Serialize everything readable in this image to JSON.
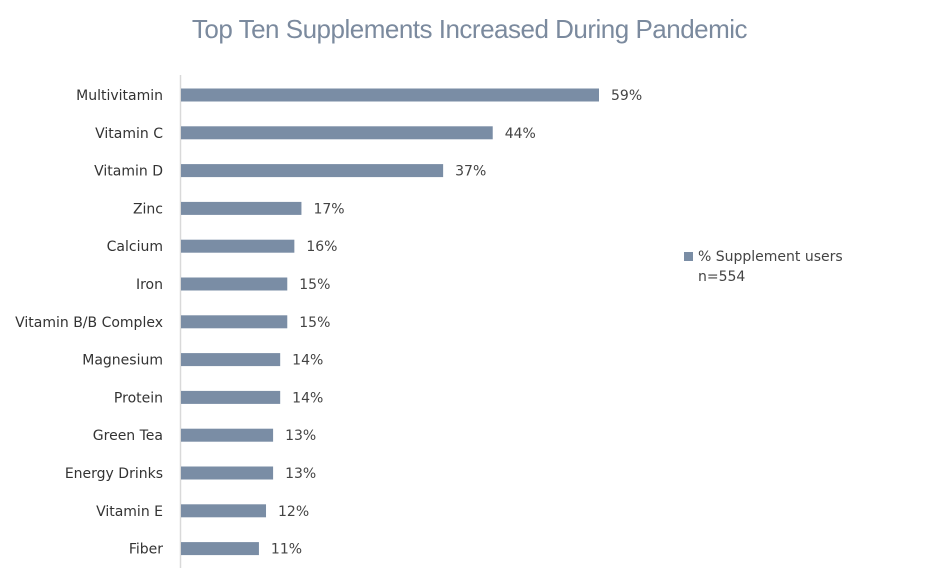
{
  "chart_data": {
    "type": "bar",
    "orientation": "horizontal",
    "title": "Top Ten Supplements Increased During Pandemic",
    "categories": [
      "Multivitamin",
      "Vitamin C",
      "Vitamin D",
      "Zinc",
      "Calcium",
      "Iron",
      "Vitamin B/B Complex",
      "Magnesium",
      "Protein",
      "Green Tea",
      "Energy Drinks",
      "Vitamin E",
      "Fiber"
    ],
    "series": [
      {
        "name": "% Supplement users",
        "values": [
          59,
          44,
          37,
          17,
          16,
          15,
          15,
          14,
          14,
          13,
          13,
          12,
          11
        ],
        "color": "#7a8da5"
      }
    ],
    "value_suffix": "%",
    "legend": {
      "label": "% Supplement users",
      "note": "n=554",
      "position": "right"
    },
    "xlim": [
      0,
      60
    ],
    "grid": false
  }
}
